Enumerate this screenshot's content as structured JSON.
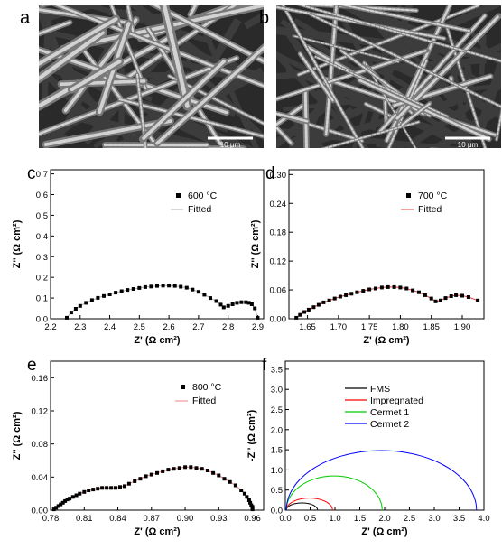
{
  "panels": {
    "a": {
      "letter": "a",
      "scale_bar": "10 μm"
    },
    "b": {
      "letter": "b",
      "scale_bar": "10 μm"
    }
  },
  "chart_data": [
    {
      "id": "c",
      "letter": "c",
      "type": "scatter",
      "xlabel": "Z' (Ω cm²)",
      "ylabel": "Z'' (Ω cm²)",
      "xlim": [
        2.2,
        2.92
      ],
      "ylim": [
        0,
        0.72
      ],
      "xticks": [
        2.2,
        2.3,
        2.4,
        2.5,
        2.6,
        2.7,
        2.8,
        2.9
      ],
      "yticks": [
        0.0,
        0.1,
        0.2,
        0.3,
        0.4,
        0.5,
        0.6,
        0.7
      ],
      "tick_decimals": {
        "x": 1,
        "y": 1
      },
      "legend": [
        "600 °C",
        "Fitted"
      ],
      "x": [
        2.255,
        2.27,
        2.285,
        2.3,
        2.32,
        2.34,
        2.36,
        2.38,
        2.4,
        2.42,
        2.44,
        2.46,
        2.48,
        2.5,
        2.52,
        2.54,
        2.56,
        2.58,
        2.6,
        2.62,
        2.64,
        2.66,
        2.68,
        2.7,
        2.72,
        2.74,
        2.76,
        2.775,
        2.785,
        2.8,
        2.815,
        2.83,
        2.845,
        2.86,
        2.87,
        2.88,
        2.89,
        2.9
      ],
      "y": [
        0.005,
        0.03,
        0.048,
        0.062,
        0.077,
        0.09,
        0.101,
        0.11,
        0.118,
        0.126,
        0.133,
        0.139,
        0.144,
        0.149,
        0.153,
        0.156,
        0.159,
        0.16,
        0.16,
        0.159,
        0.155,
        0.15,
        0.141,
        0.13,
        0.116,
        0.1,
        0.085,
        0.068,
        0.055,
        0.062,
        0.07,
        0.077,
        0.08,
        0.08,
        0.077,
        0.07,
        0.05,
        0.005
      ],
      "fit_color": "#b0b0b0"
    },
    {
      "id": "d",
      "letter": "d",
      "type": "scatter",
      "xlabel": "Z' (Ω cm²)",
      "ylabel": "Z'' (Ω cm²)",
      "xlim": [
        1.62,
        1.935
      ],
      "ylim": [
        0,
        0.31
      ],
      "xticks": [
        1.65,
        1.7,
        1.75,
        1.8,
        1.85,
        1.9
      ],
      "yticks": [
        0.0,
        0.06,
        0.12,
        0.18,
        0.24,
        0.3
      ],
      "tick_decimals": {
        "x": 2,
        "y": 2
      },
      "legend": [
        "700 °C",
        "Fitted"
      ],
      "x": [
        1.632,
        1.638,
        1.645,
        1.652,
        1.66,
        1.668,
        1.676,
        1.685,
        1.694,
        1.703,
        1.712,
        1.721,
        1.73,
        1.74,
        1.75,
        1.76,
        1.77,
        1.78,
        1.79,
        1.8,
        1.81,
        1.82,
        1.83,
        1.84,
        1.85,
        1.857,
        1.865,
        1.873,
        1.882,
        1.89,
        1.9,
        1.91,
        1.925
      ],
      "y": [
        0.002,
        0.008,
        0.014,
        0.019,
        0.024,
        0.029,
        0.034,
        0.038,
        0.042,
        0.046,
        0.049,
        0.052,
        0.055,
        0.058,
        0.061,
        0.063,
        0.065,
        0.066,
        0.066,
        0.065,
        0.063,
        0.059,
        0.055,
        0.049,
        0.042,
        0.036,
        0.038,
        0.043,
        0.047,
        0.049,
        0.048,
        0.045,
        0.038
      ],
      "fit_color": "#e04040"
    },
    {
      "id": "e",
      "letter": "e",
      "type": "scatter",
      "xlabel": "Z' (Ω cm²)",
      "ylabel": "Z'' (Ω cm²)",
      "xlim": [
        0.78,
        0.97
      ],
      "ylim": [
        0,
        0.18
      ],
      "xticks": [
        0.78,
        0.81,
        0.84,
        0.87,
        0.9,
        0.93,
        0.96
      ],
      "yticks": [
        0.0,
        0.04,
        0.08,
        0.12,
        0.16
      ],
      "tick_decimals": {
        "x": 2,
        "y": 2
      },
      "legend": [
        "800 °C",
        "Fitted"
      ],
      "x": [
        0.783,
        0.785,
        0.787,
        0.789,
        0.791,
        0.793,
        0.795,
        0.797,
        0.8,
        0.803,
        0.806,
        0.81,
        0.814,
        0.818,
        0.822,
        0.826,
        0.83,
        0.834,
        0.838,
        0.842,
        0.846,
        0.85,
        0.855,
        0.86,
        0.865,
        0.87,
        0.875,
        0.88,
        0.885,
        0.89,
        0.895,
        0.9,
        0.905,
        0.91,
        0.915,
        0.92,
        0.925,
        0.93,
        0.935,
        0.94,
        0.945,
        0.95,
        0.953,
        0.955,
        0.957,
        0.958,
        0.959,
        0.96,
        0.96,
        0.96
      ],
      "y": [
        0.001,
        0.003,
        0.005,
        0.007,
        0.009,
        0.011,
        0.013,
        0.014,
        0.016,
        0.018,
        0.02,
        0.022,
        0.024,
        0.025,
        0.026,
        0.027,
        0.027,
        0.027,
        0.027,
        0.028,
        0.029,
        0.032,
        0.035,
        0.038,
        0.041,
        0.043,
        0.045,
        0.047,
        0.049,
        0.05,
        0.051,
        0.052,
        0.052,
        0.051,
        0.05,
        0.048,
        0.045,
        0.042,
        0.038,
        0.034,
        0.03,
        0.024,
        0.02,
        0.016,
        0.012,
        0.009,
        0.006,
        0.004,
        0.002,
        0.001
      ],
      "fit_color": "#f08080"
    },
    {
      "id": "f",
      "letter": "f",
      "type": "line",
      "xlabel": "Z' (Ω cm²)",
      "ylabel": "-Z'' (Ω cm²)",
      "xlim": [
        0,
        4.0
      ],
      "ylim": [
        0,
        3.7
      ],
      "xticks": [
        0.0,
        0.5,
        1.0,
        1.5,
        2.0,
        2.5,
        3.0,
        3.5,
        4.0
      ],
      "yticks": [
        0.0,
        0.5,
        1.0,
        1.5,
        2.0,
        2.5,
        3.0,
        3.5
      ],
      "tick_decimals": {
        "x": 1,
        "y": 1
      },
      "series": [
        {
          "name": "FMS",
          "color": "#000000",
          "arc": [
            0.02,
            0.65,
            0.18
          ]
        },
        {
          "name": "Impregnated",
          "color": "#ff0000",
          "arc": [
            0.02,
            0.95,
            0.3
          ]
        },
        {
          "name": "Cermet 1",
          "color": "#00cc00",
          "arc": [
            0.02,
            1.95,
            0.85
          ]
        },
        {
          "name": "Cermet 2",
          "color": "#0000ff",
          "arc": [
            0.02,
            3.85,
            1.48
          ]
        }
      ]
    }
  ]
}
